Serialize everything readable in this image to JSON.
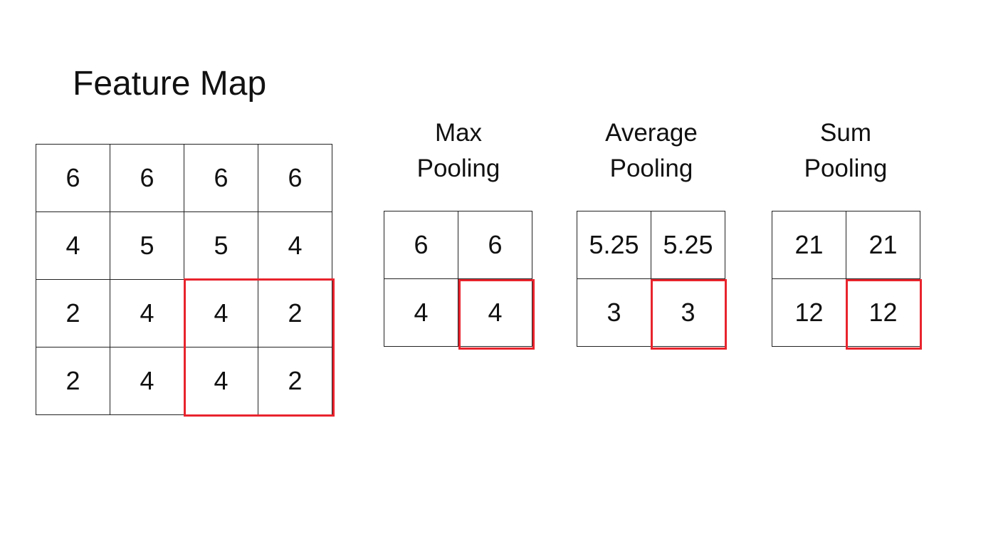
{
  "feature_map": {
    "title": "Feature Map",
    "cells": [
      "6",
      "6",
      "6",
      "6",
      "4",
      "5",
      "5",
      "4",
      "2",
      "4",
      "4",
      "2",
      "2",
      "4",
      "4",
      "2"
    ]
  },
  "max_pooling": {
    "title_line1": "Max",
    "title_line2": "Pooling",
    "cells": [
      "6",
      "6",
      "4",
      "4"
    ]
  },
  "average_pooling": {
    "title_line1": "Average",
    "title_line2": "Pooling",
    "cells": [
      "5.25",
      "5.25",
      "3",
      "3"
    ]
  },
  "sum_pooling": {
    "title_line1": "Sum",
    "title_line2": "Pooling",
    "cells": [
      "21",
      "21",
      "12",
      "12"
    ]
  },
  "colors": {
    "highlight": "#e8242d",
    "grid_line": "#222222"
  }
}
